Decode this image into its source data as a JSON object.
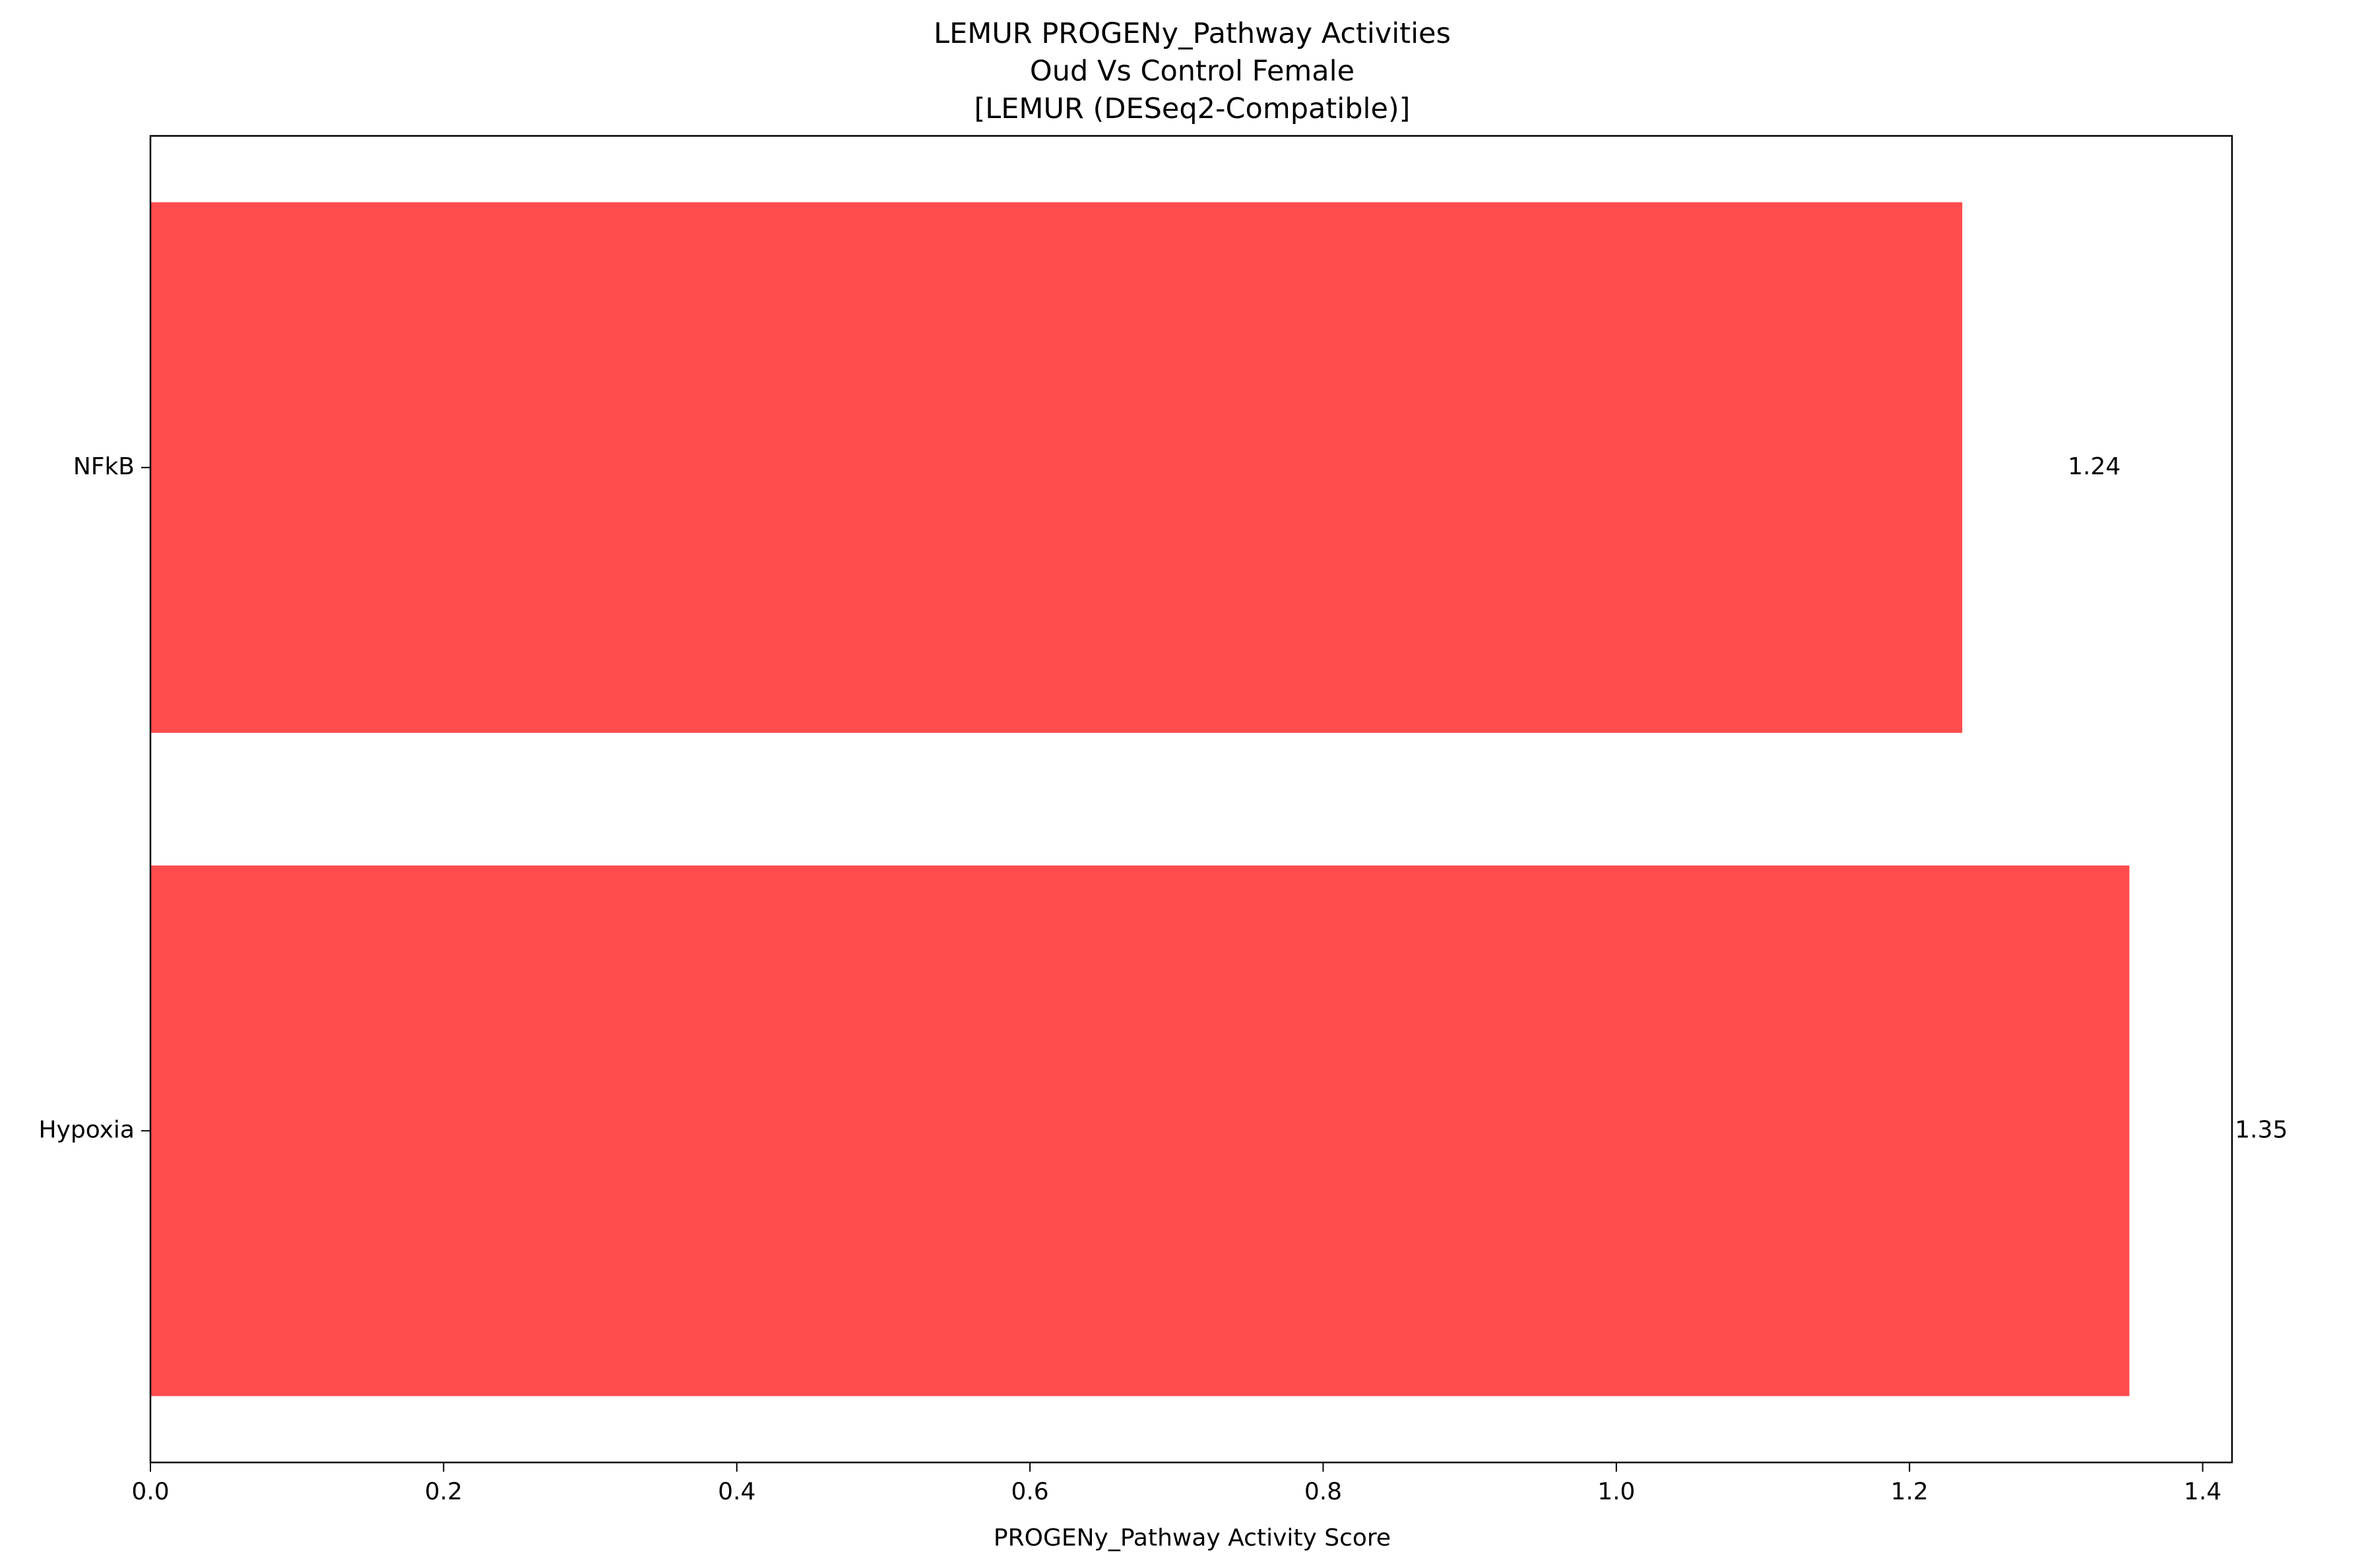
{
  "chart_data": {
    "type": "bar",
    "orientation": "horizontal",
    "title_lines": [
      "LEMUR PROGENy_Pathway Activities",
      "Oud Vs Control Female",
      "[LEMUR (DESeq2-Compatible)]"
    ],
    "xlabel": "PROGENy_Pathway Activity Score",
    "ylabel": "",
    "categories": [
      "NFkB",
      "Hypoxia"
    ],
    "values": [
      1.236,
      1.35
    ],
    "value_labels": [
      "1.24",
      "1.35"
    ],
    "bar_color": "#ff4d4d",
    "xlim": [
      0,
      1.42
    ],
    "xticks": [
      0.0,
      0.2,
      0.4,
      0.6,
      0.8,
      1.0,
      1.2,
      1.4
    ],
    "xtick_labels": [
      "0.0",
      "0.2",
      "0.4",
      "0.6",
      "0.8",
      "1.0",
      "1.2",
      "1.4"
    ],
    "grid": false,
    "legend": "none"
  }
}
